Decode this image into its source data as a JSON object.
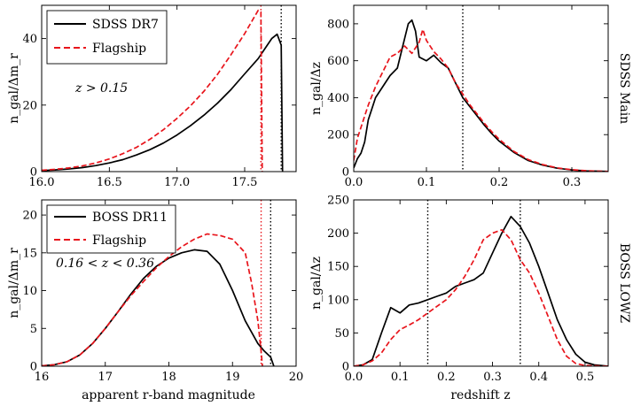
{
  "figure": {
    "row_labels": [
      "SDSS Main",
      "BOSS LOWZ"
    ]
  },
  "chart_data": [
    {
      "type": "line",
      "id": "sdss-mag",
      "title": "",
      "xlabel": "",
      "ylabel": "n_gal/Δm_r",
      "xlim": [
        16.0,
        17.88
      ],
      "ylim": [
        0,
        50
      ],
      "xticks": [
        16.0,
        16.5,
        17.0,
        17.5
      ],
      "xtick_labels": [
        "16.0",
        "16.5",
        "17.0",
        "17.5"
      ],
      "yticks": [
        0,
        20,
        40
      ],
      "ytick_labels": [
        "0",
        "20",
        "40"
      ],
      "annotation": "z > 0.15",
      "legend": {
        "position": "top-left",
        "entries": [
          "SDSS DR7",
          "Flagship"
        ]
      },
      "vlines": [
        {
          "x": 17.77,
          "color": "#000000"
        },
        {
          "x": 17.62,
          "color": "#e8141b"
        }
      ],
      "series": [
        {
          "name": "SDSS DR7",
          "color": "#000000",
          "style": "solid",
          "x": [
            16.0,
            16.1,
            16.2,
            16.3,
            16.4,
            16.5,
            16.6,
            16.7,
            16.8,
            16.9,
            17.0,
            17.1,
            17.2,
            17.3,
            17.4,
            17.5,
            17.6,
            17.65,
            17.7,
            17.74,
            17.77,
            17.78
          ],
          "y": [
            0.3,
            0.5,
            0.8,
            1.2,
            1.8,
            2.6,
            3.6,
            5.0,
            6.6,
            8.6,
            11.0,
            13.8,
            17.0,
            20.6,
            24.7,
            29.4,
            34.0,
            37.0,
            40.0,
            41.3,
            38.0,
            0
          ]
        },
        {
          "name": "Flagship",
          "color": "#e8141b",
          "style": "dashed",
          "x": [
            16.0,
            16.1,
            16.2,
            16.3,
            16.4,
            16.5,
            16.6,
            16.7,
            16.8,
            16.9,
            17.0,
            17.1,
            17.2,
            17.3,
            17.4,
            17.5,
            17.55,
            17.6,
            17.62,
            17.63
          ],
          "y": [
            0.4,
            0.7,
            1.1,
            1.7,
            2.6,
            3.8,
            5.4,
            7.3,
            9.7,
            12.6,
            16.0,
            19.8,
            24.2,
            29.3,
            35.2,
            41.5,
            45.0,
            48.5,
            48.0,
            0
          ]
        }
      ]
    },
    {
      "type": "line",
      "id": "sdss-z",
      "title": "",
      "xlabel": "",
      "ylabel": "n_gal/Δz",
      "xlim": [
        0.0,
        0.35
      ],
      "ylim": [
        0,
        900
      ],
      "xticks": [
        0.0,
        0.1,
        0.2,
        0.3
      ],
      "xtick_labels": [
        "0.0",
        "0.1",
        "0.2",
        "0.3"
      ],
      "yticks": [
        0,
        200,
        400,
        600,
        800
      ],
      "ytick_labels": [
        "0",
        "200",
        "400",
        "600",
        "800"
      ],
      "vlines": [
        {
          "x": 0.15,
          "color": "#000000"
        }
      ],
      "series": [
        {
          "name": "SDSS DR7",
          "color": "#000000",
          "style": "solid",
          "x": [
            0.0,
            0.005,
            0.01,
            0.015,
            0.02,
            0.03,
            0.04,
            0.05,
            0.06,
            0.07,
            0.075,
            0.08,
            0.085,
            0.09,
            0.1,
            0.11,
            0.12,
            0.13,
            0.14,
            0.15,
            0.16,
            0.17,
            0.18,
            0.19,
            0.2,
            0.22,
            0.24,
            0.26,
            0.28,
            0.3,
            0.32,
            0.34,
            0.35
          ],
          "y": [
            20,
            70,
            100,
            160,
            280,
            400,
            460,
            520,
            560,
            720,
            800,
            820,
            760,
            620,
            600,
            630,
            590,
            560,
            480,
            400,
            350,
            300,
            250,
            205,
            165,
            105,
            60,
            35,
            18,
            9,
            4,
            2,
            1
          ]
        },
        {
          "name": "Flagship",
          "color": "#e8141b",
          "style": "dashed",
          "x": [
            0.0,
            0.005,
            0.01,
            0.015,
            0.02,
            0.03,
            0.04,
            0.05,
            0.06,
            0.07,
            0.08,
            0.09,
            0.095,
            0.1,
            0.11,
            0.12,
            0.13,
            0.14,
            0.15,
            0.16,
            0.17,
            0.18,
            0.19,
            0.2,
            0.22,
            0.24,
            0.26,
            0.28,
            0.3,
            0.32,
            0.34,
            0.35
          ],
          "y": [
            60,
            180,
            240,
            300,
            360,
            460,
            540,
            620,
            640,
            680,
            640,
            700,
            770,
            710,
            650,
            610,
            560,
            480,
            420,
            360,
            310,
            260,
            215,
            175,
            110,
            65,
            38,
            20,
            10,
            5,
            2,
            1
          ]
        }
      ]
    },
    {
      "type": "line",
      "id": "boss-mag",
      "title": "",
      "xlabel": "apparent r-band magnitude",
      "ylabel": "n_gal/Δm_r",
      "xlim": [
        16,
        20
      ],
      "ylim": [
        0,
        22
      ],
      "xticks": [
        16,
        17,
        18,
        19,
        20
      ],
      "xtick_labels": [
        "16",
        "17",
        "18",
        "19",
        "20"
      ],
      "yticks": [
        0,
        5,
        10,
        15,
        20
      ],
      "ytick_labels": [
        "0",
        "5",
        "10",
        "15",
        "20"
      ],
      "annotation": "0.16 < z < 0.36",
      "legend": {
        "position": "top-left",
        "entries": [
          "BOSS DR11",
          "Flagship"
        ]
      },
      "vlines": [
        {
          "x": 19.6,
          "color": "#000000"
        },
        {
          "x": 19.45,
          "color": "#e8141b"
        }
      ],
      "series": [
        {
          "name": "BOSS DR11",
          "color": "#000000",
          "style": "solid",
          "x": [
            16.0,
            16.2,
            16.4,
            16.6,
            16.8,
            17.0,
            17.2,
            17.4,
            17.6,
            17.8,
            18.0,
            18.2,
            18.4,
            18.6,
            18.8,
            19.0,
            19.2,
            19.4,
            19.5,
            19.6,
            19.65
          ],
          "y": [
            0.05,
            0.2,
            0.6,
            1.5,
            3.0,
            5.0,
            7.2,
            9.5,
            11.6,
            13.2,
            14.3,
            15.0,
            15.4,
            15.2,
            13.5,
            10.0,
            6.0,
            3.0,
            2.0,
            1.2,
            0
          ]
        },
        {
          "name": "Flagship",
          "color": "#e8141b",
          "style": "dashed",
          "x": [
            16.0,
            16.2,
            16.4,
            16.6,
            16.8,
            17.0,
            17.2,
            17.4,
            17.6,
            17.8,
            18.0,
            18.2,
            18.4,
            18.6,
            18.8,
            19.0,
            19.2,
            19.3,
            19.4,
            19.45,
            19.47
          ],
          "y": [
            0.05,
            0.2,
            0.6,
            1.5,
            3.0,
            5.0,
            7.2,
            9.3,
            11.2,
            13.0,
            14.5,
            15.8,
            16.8,
            17.5,
            17.3,
            16.8,
            15.0,
            11.0,
            6.0,
            2.0,
            0
          ]
        }
      ]
    },
    {
      "type": "line",
      "id": "boss-z",
      "title": "",
      "xlabel": "redshift z",
      "ylabel": "n_gal/Δz",
      "xlim": [
        0.0,
        0.55
      ],
      "ylim": [
        0,
        250
      ],
      "xticks": [
        0.0,
        0.1,
        0.2,
        0.3,
        0.4,
        0.5
      ],
      "xtick_labels": [
        "0.0",
        "0.1",
        "0.2",
        "0.3",
        "0.4",
        "0.5"
      ],
      "yticks": [
        0,
        50,
        100,
        150,
        200,
        250
      ],
      "ytick_labels": [
        "0",
        "50",
        "100",
        "150",
        "200",
        "250"
      ],
      "vlines": [
        {
          "x": 0.16,
          "color": "#000000"
        },
        {
          "x": 0.36,
          "color": "#000000"
        }
      ],
      "series": [
        {
          "name": "BOSS DR11",
          "color": "#000000",
          "style": "solid",
          "x": [
            0.0,
            0.02,
            0.04,
            0.06,
            0.08,
            0.1,
            0.12,
            0.14,
            0.16,
            0.18,
            0.2,
            0.22,
            0.24,
            0.26,
            0.28,
            0.3,
            0.32,
            0.34,
            0.36,
            0.38,
            0.4,
            0.42,
            0.44,
            0.46,
            0.48,
            0.5,
            0.52,
            0.55
          ],
          "y": [
            0,
            2,
            10,
            50,
            88,
            80,
            92,
            95,
            100,
            105,
            110,
            120,
            125,
            130,
            140,
            170,
            200,
            225,
            210,
            185,
            150,
            110,
            70,
            40,
            18,
            6,
            2,
            0
          ]
        },
        {
          "name": "Flagship",
          "color": "#e8141b",
          "style": "dashed",
          "x": [
            0.0,
            0.02,
            0.04,
            0.06,
            0.08,
            0.1,
            0.12,
            0.14,
            0.16,
            0.18,
            0.2,
            0.22,
            0.24,
            0.26,
            0.28,
            0.3,
            0.32,
            0.34,
            0.36,
            0.38,
            0.4,
            0.42,
            0.44,
            0.46,
            0.48,
            0.5,
            0.55
          ],
          "y": [
            0,
            2,
            8,
            20,
            40,
            55,
            62,
            70,
            80,
            90,
            100,
            115,
            135,
            160,
            190,
            200,
            205,
            190,
            160,
            140,
            110,
            75,
            40,
            15,
            4,
            1,
            0
          ]
        }
      ]
    }
  ]
}
